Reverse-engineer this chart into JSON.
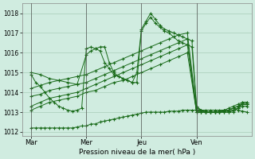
{
  "title": "",
  "xlabel": "Pression niveau de la mer( hPa )",
  "ylabel": "",
  "bg_color": "#d0ece0",
  "grid_color": "#a8cdb8",
  "line_color": "#1a6b1a",
  "ylim": [
    1011.8,
    1018.5
  ],
  "xlim": [
    0,
    100
  ],
  "yticks": [
    1012,
    1013,
    1014,
    1015,
    1016,
    1017,
    1018
  ],
  "xtick_positions": [
    4,
    28,
    52,
    76
  ],
  "xtick_labels": [
    "Mar",
    "Mer",
    "Jeu",
    "Ven"
  ],
  "vlines": [
    4,
    28,
    52,
    76
  ],
  "series": [
    {
      "x": [
        4,
        6,
        8,
        10,
        12,
        14,
        16,
        18,
        20,
        22,
        24,
        26,
        28,
        30,
        32,
        34,
        36,
        38,
        40,
        42,
        44,
        46,
        48,
        50,
        52,
        54,
        56,
        58,
        60,
        62,
        64,
        66,
        68,
        70,
        72,
        74,
        76,
        78,
        80,
        82,
        84,
        86,
        88,
        90,
        92,
        94,
        96,
        98
      ],
      "y": [
        1012.2,
        1012.2,
        1012.2,
        1012.2,
        1012.2,
        1012.2,
        1012.2,
        1012.2,
        1012.2,
        1012.2,
        1012.25,
        1012.3,
        1012.3,
        1012.4,
        1012.4,
        1012.5,
        1012.55,
        1012.6,
        1012.65,
        1012.7,
        1012.75,
        1012.8,
        1012.85,
        1012.9,
        1012.95,
        1013.0,
        1013.0,
        1013.0,
        1013.0,
        1013.0,
        1013.05,
        1013.05,
        1013.05,
        1013.1,
        1013.1,
        1013.1,
        1013.1,
        1013.1,
        1013.1,
        1013.1,
        1013.1,
        1013.1,
        1013.1,
        1013.1,
        1013.2,
        1013.1,
        1013.05,
        1013.0
      ]
    },
    {
      "x": [
        4,
        8,
        12,
        16,
        20,
        24,
        28,
        32,
        36,
        40,
        44,
        48,
        52,
        56,
        60,
        64,
        68,
        72,
        76,
        78,
        80,
        82,
        84,
        86,
        88,
        90,
        92,
        94,
        96,
        98
      ],
      "y": [
        1013.1,
        1013.3,
        1013.5,
        1013.6,
        1013.7,
        1013.8,
        1014.0,
        1014.1,
        1014.3,
        1014.5,
        1014.6,
        1014.8,
        1015.0,
        1015.2,
        1015.4,
        1015.6,
        1015.8,
        1016.0,
        1013.0,
        1013.0,
        1013.0,
        1013.0,
        1013.0,
        1013.0,
        1013.1,
        1013.1,
        1013.2,
        1013.3,
        1013.4,
        1013.4
      ]
    },
    {
      "x": [
        4,
        8,
        12,
        16,
        20,
        24,
        28,
        32,
        36,
        40,
        44,
        48,
        52,
        56,
        60,
        64,
        68,
        72,
        76,
        78,
        80,
        82,
        84,
        86,
        88,
        90,
        92,
        94,
        96,
        98
      ],
      "y": [
        1013.3,
        1013.5,
        1013.7,
        1013.8,
        1013.9,
        1014.0,
        1014.2,
        1014.4,
        1014.6,
        1014.8,
        1015.0,
        1015.2,
        1015.4,
        1015.6,
        1015.8,
        1016.0,
        1016.2,
        1016.4,
        1013.0,
        1013.0,
        1013.0,
        1013.0,
        1013.0,
        1013.0,
        1013.1,
        1013.1,
        1013.2,
        1013.3,
        1013.4,
        1013.4
      ]
    },
    {
      "x": [
        4,
        8,
        12,
        16,
        20,
        24,
        28,
        32,
        36,
        40,
        44,
        48,
        52,
        56,
        60,
        64,
        68,
        72,
        76,
        78,
        80,
        82,
        84,
        86,
        88,
        90,
        92,
        94,
        96,
        98
      ],
      "y": [
        1013.8,
        1013.9,
        1014.1,
        1014.2,
        1014.3,
        1014.4,
        1014.5,
        1014.7,
        1014.9,
        1015.1,
        1015.3,
        1015.5,
        1015.7,
        1015.9,
        1016.1,
        1016.3,
        1016.5,
        1016.7,
        1013.0,
        1013.0,
        1013.0,
        1013.0,
        1013.0,
        1013.0,
        1013.05,
        1013.05,
        1013.1,
        1013.2,
        1013.3,
        1013.3
      ]
    },
    {
      "x": [
        4,
        8,
        12,
        16,
        20,
        24,
        28,
        32,
        36,
        40,
        44,
        48,
        52,
        56,
        60,
        64,
        68,
        72,
        76,
        78,
        80,
        82,
        84,
        86,
        88,
        90,
        92,
        94,
        96,
        98
      ],
      "y": [
        1014.2,
        1014.35,
        1014.5,
        1014.6,
        1014.7,
        1014.8,
        1014.9,
        1015.1,
        1015.3,
        1015.5,
        1015.7,
        1015.9,
        1016.1,
        1016.3,
        1016.5,
        1016.7,
        1016.9,
        1017.0,
        1013.1,
        1013.1,
        1013.0,
        1013.0,
        1013.0,
        1013.0,
        1013.1,
        1013.2,
        1013.3,
        1013.4,
        1013.5,
        1013.5
      ]
    },
    {
      "x": [
        4,
        8,
        12,
        16,
        20,
        24,
        28,
        30,
        32,
        34,
        36,
        38,
        40,
        42,
        44,
        46,
        48,
        50,
        52,
        54,
        56,
        58,
        60,
        62,
        64,
        66,
        68,
        70,
        72,
        74,
        76,
        78,
        80,
        82,
        84,
        86,
        88,
        90,
        92,
        94,
        96,
        98
      ],
      "y": [
        1015.0,
        1014.9,
        1014.7,
        1014.6,
        1014.5,
        1014.4,
        1015.9,
        1016.1,
        1016.2,
        1016.3,
        1016.3,
        1015.5,
        1015.0,
        1014.8,
        1014.7,
        1014.6,
        1014.5,
        1014.5,
        1017.1,
        1017.5,
        1017.8,
        1017.5,
        1017.3,
        1017.1,
        1017.0,
        1016.8,
        1016.6,
        1016.5,
        1016.4,
        1016.3,
        1013.2,
        1013.1,
        1013.0,
        1013.0,
        1013.0,
        1013.0,
        1013.0,
        1013.0,
        1013.1,
        1013.2,
        1013.4,
        1013.4
      ]
    },
    {
      "x": [
        4,
        6,
        8,
        10,
        12,
        14,
        16,
        18,
        20,
        22,
        24,
        26,
        28,
        30,
        32,
        34,
        36,
        38,
        40,
        42,
        44,
        46,
        48,
        50,
        52,
        54,
        56,
        58,
        60,
        62,
        64,
        66,
        68,
        70,
        72,
        74,
        76,
        78,
        80,
        82,
        84,
        86,
        88,
        90,
        92,
        94,
        96,
        98
      ],
      "y": [
        1014.9,
        1014.5,
        1014.3,
        1014.0,
        1013.7,
        1013.5,
        1013.3,
        1013.2,
        1013.1,
        1013.05,
        1013.1,
        1013.2,
        1016.2,
        1016.3,
        1016.2,
        1016.1,
        1015.5,
        1015.2,
        1014.9,
        1014.8,
        1014.7,
        1014.6,
        1014.5,
        1015.0,
        1017.2,
        1017.6,
        1018.0,
        1017.7,
        1017.4,
        1017.2,
        1017.1,
        1017.0,
        1016.9,
        1016.8,
        1016.7,
        1016.6,
        1013.3,
        1013.1,
        1013.0,
        1013.0,
        1013.0,
        1013.0,
        1013.0,
        1013.0,
        1013.0,
        1013.2,
        1013.5,
        1013.5
      ]
    }
  ]
}
